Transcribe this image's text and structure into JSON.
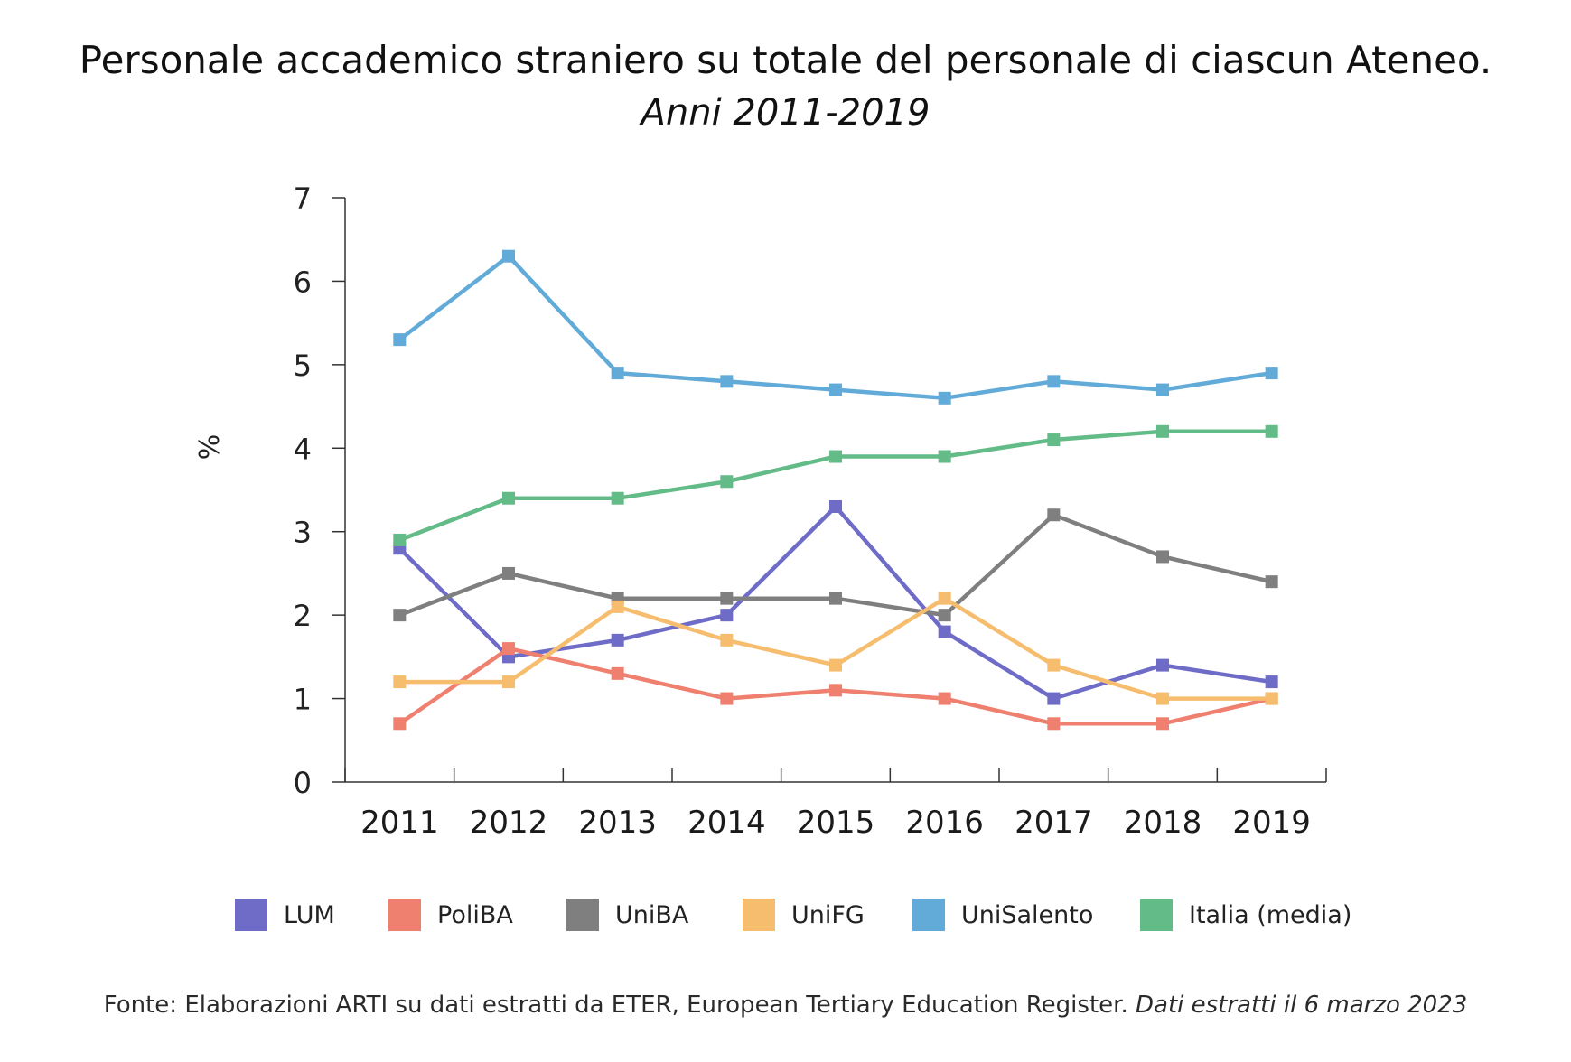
{
  "title": "Personale accademico straniero su totale del personale di ciascun Ateneo.",
  "subtitle": "Anni 2011-2019",
  "source": {
    "text": "Fonte: Elaborazioni ARTI su dati estratti da ETER, European Tertiary Education Register.",
    "italic": "Dati estratti il 6 marzo 2023"
  },
  "chart_data": {
    "type": "line",
    "ylabel": "%",
    "xlabel": "",
    "ylim": [
      0,
      7
    ],
    "yticks": [
      "0",
      "1",
      "2",
      "3",
      "4",
      "5",
      "6",
      "7"
    ],
    "grid": false,
    "legend_position": "bottom",
    "categories": [
      "2011",
      "2012",
      "2013",
      "2014",
      "2015",
      "2016",
      "2017",
      "2018",
      "2019"
    ],
    "series": [
      {
        "name": "LUM",
        "color": "#6F6CC8",
        "values": [
          2.8,
          1.5,
          1.7,
          2.0,
          3.3,
          1.8,
          1.0,
          1.4,
          1.2
        ]
      },
      {
        "name": "PoliBA",
        "color": "#EF7F6E",
        "values": [
          0.7,
          1.6,
          1.3,
          1.0,
          1.1,
          1.0,
          0.7,
          0.7,
          1.0
        ]
      },
      {
        "name": "UniBA",
        "color": "#7F7F7F",
        "values": [
          2.0,
          2.5,
          2.2,
          2.2,
          2.2,
          2.0,
          3.2,
          2.7,
          2.4
        ]
      },
      {
        "name": "UniFG",
        "color": "#F6BD6E",
        "values": [
          1.2,
          1.2,
          2.1,
          1.7,
          1.4,
          2.2,
          1.4,
          1.0,
          1.0
        ]
      },
      {
        "name": "UniSalento",
        "color": "#62ABD8",
        "values": [
          5.3,
          6.3,
          4.9,
          4.8,
          4.7,
          4.6,
          4.8,
          4.7,
          4.9
        ]
      },
      {
        "name": "Italia (media)",
        "color": "#63BB87",
        "values": [
          2.9,
          3.4,
          3.4,
          3.6,
          3.9,
          3.9,
          4.1,
          4.2,
          4.2
        ]
      }
    ]
  }
}
